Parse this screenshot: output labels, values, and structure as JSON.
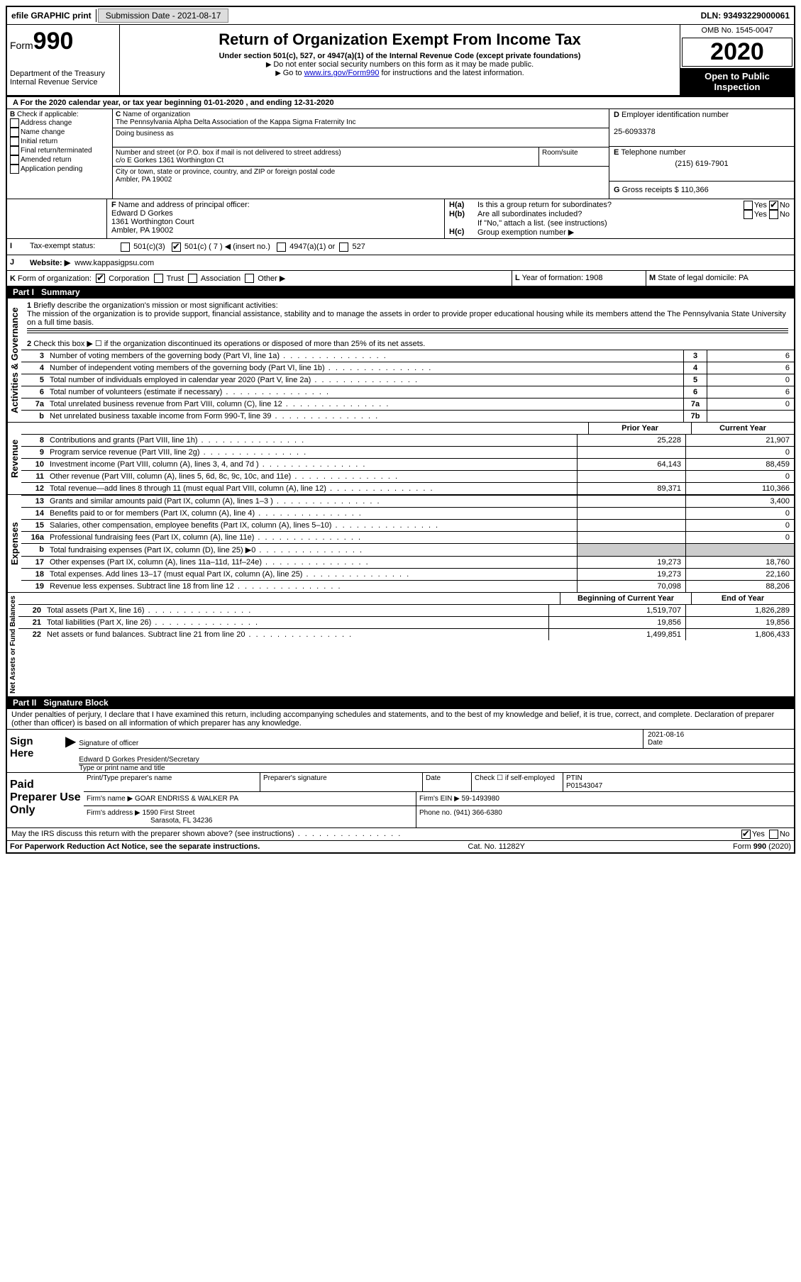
{
  "topbar": {
    "efile": "efile GRAPHIC print",
    "submission_label": "Submission Date - 2021-08-17",
    "dln_label": "DLN: 93493229000061"
  },
  "header": {
    "form_label": "Form",
    "form_number": "990",
    "dept": "Department of the Treasury\nInternal Revenue Service",
    "title": "Return of Organization Exempt From Income Tax",
    "subtitle": "Under section 501(c), 527, or 4947(a)(1) of the Internal Revenue Code (except private foundations)",
    "note1": "Do not enter social security numbers on this form as it may be made public.",
    "note2_pre": "Go to ",
    "note2_link": "www.irs.gov/Form990",
    "note2_post": " for instructions and the latest information.",
    "omb": "OMB No. 1545-0047",
    "year": "2020",
    "open": "Open to Public Inspection"
  },
  "periodA": "For the 2020 calendar year, or tax year beginning 01-01-2020    , and ending 12-31-2020",
  "boxB": {
    "label": "Check if applicable:",
    "opts": [
      "Address change",
      "Name change",
      "Initial return",
      "Final return/terminated",
      "Amended return",
      "Application pending"
    ]
  },
  "boxC": {
    "name_label": "Name of organization",
    "name": "The Pennsylvania Alpha Delta Association of the Kappa Sigma Fraternity Inc",
    "dba_label": "Doing business as",
    "addr_label": "Number and street (or P.O. box if mail is not delivered to street address)",
    "room_label": "Room/suite",
    "addr": "c/o E Gorkes 1361 Worthington Ct",
    "city_label": "City or town, state or province, country, and ZIP or foreign postal code",
    "city": "Ambler, PA  19002"
  },
  "boxD": {
    "label": "Employer identification number",
    "val": "25-6093378"
  },
  "boxE": {
    "label": "Telephone number",
    "val": "(215) 619-7901"
  },
  "boxG": {
    "label": "Gross receipts $ 110,366"
  },
  "boxF": {
    "label": "Name and address of principal officer:",
    "name": "Edward D Gorkes",
    "addr1": "1361 Worthington Court",
    "addr2": "Ambler, PA  19002"
  },
  "boxH": {
    "a": "Is this a group return for subordinates?",
    "b": "Are all subordinates included?",
    "bnote": "If \"No,\" attach a list. (see instructions)",
    "c": "Group exemption number ▶"
  },
  "taxExempt": {
    "label": "Tax-exempt status:",
    "o1": "501(c)(3)",
    "o2": "501(c) ( 7 ) ◀ (insert no.)",
    "o3": "4947(a)(1) or",
    "o4": "527"
  },
  "website": {
    "label": "Website: ▶",
    "val": "www.kappasigpsu.com"
  },
  "boxK": {
    "label": "Form of organization:",
    "opts": [
      "Corporation",
      "Trust",
      "Association",
      "Other ▶"
    ]
  },
  "boxL": {
    "label": "Year of formation: 1908"
  },
  "boxM": {
    "label": "State of legal domicile: PA"
  },
  "part1": {
    "title": "Part I",
    "heading": "Summary",
    "l1": "Briefly describe the organization's mission or most significant activities:",
    "mission": "The mission of the organization is to provide support, financial assistance, stability and to manage the assets in order to provide proper educational housing while its members attend the The Pennsylvania State University on a full time basis.",
    "l2": "Check this box ▶ ☐  if the organization discontinued its operations or disposed of more than 25% of its net assets.",
    "rows_gov": [
      {
        "n": "3",
        "t": "Number of voting members of the governing body (Part VI, line 1a)",
        "box": "3",
        "v": "6"
      },
      {
        "n": "4",
        "t": "Number of independent voting members of the governing body (Part VI, line 1b)",
        "box": "4",
        "v": "6"
      },
      {
        "n": "5",
        "t": "Total number of individuals employed in calendar year 2020 (Part V, line 2a)",
        "box": "5",
        "v": "0"
      },
      {
        "n": "6",
        "t": "Total number of volunteers (estimate if necessary)",
        "box": "6",
        "v": "6"
      },
      {
        "n": "7a",
        "t": "Total unrelated business revenue from Part VIII, column (C), line 12",
        "box": "7a",
        "v": "0"
      },
      {
        "n": "b",
        "t": "Net unrelated business taxable income from Form 990-T, line 39",
        "box": "7b",
        "v": ""
      }
    ],
    "col_prior": "Prior Year",
    "col_curr": "Current Year",
    "rows_rev": [
      {
        "n": "8",
        "t": "Contributions and grants (Part VIII, line 1h)",
        "p": "25,228",
        "c": "21,907"
      },
      {
        "n": "9",
        "t": "Program service revenue (Part VIII, line 2g)",
        "p": "",
        "c": "0"
      },
      {
        "n": "10",
        "t": "Investment income (Part VIII, column (A), lines 3, 4, and 7d )",
        "p": "64,143",
        "c": "88,459"
      },
      {
        "n": "11",
        "t": "Other revenue (Part VIII, column (A), lines 5, 6d, 8c, 9c, 10c, and 11e)",
        "p": "",
        "c": "0"
      },
      {
        "n": "12",
        "t": "Total revenue—add lines 8 through 11 (must equal Part VIII, column (A), line 12)",
        "p": "89,371",
        "c": "110,366"
      }
    ],
    "rows_exp": [
      {
        "n": "13",
        "t": "Grants and similar amounts paid (Part IX, column (A), lines 1–3 )",
        "p": "",
        "c": "3,400"
      },
      {
        "n": "14",
        "t": "Benefits paid to or for members (Part IX, column (A), line 4)",
        "p": "",
        "c": "0"
      },
      {
        "n": "15",
        "t": "Salaries, other compensation, employee benefits (Part IX, column (A), lines 5–10)",
        "p": "",
        "c": "0"
      },
      {
        "n": "16a",
        "t": "Professional fundraising fees (Part IX, column (A), line 11e)",
        "p": "",
        "c": "0"
      },
      {
        "n": "b",
        "t": "Total fundraising expenses (Part IX, column (D), line 25) ▶0",
        "p": "shade",
        "c": "shade"
      },
      {
        "n": "17",
        "t": "Other expenses (Part IX, column (A), lines 11a–11d, 11f–24e)",
        "p": "19,273",
        "c": "18,760"
      },
      {
        "n": "18",
        "t": "Total expenses. Add lines 13–17 (must equal Part IX, column (A), line 25)",
        "p": "19,273",
        "c": "22,160"
      },
      {
        "n": "19",
        "t": "Revenue less expenses. Subtract line 18 from line 12",
        "p": "70,098",
        "c": "88,206"
      }
    ],
    "col_begin": "Beginning of Current Year",
    "col_end": "End of Year",
    "rows_net": [
      {
        "n": "20",
        "t": "Total assets (Part X, line 16)",
        "p": "1,519,707",
        "c": "1,826,289"
      },
      {
        "n": "21",
        "t": "Total liabilities (Part X, line 26)",
        "p": "19,856",
        "c": "19,856"
      },
      {
        "n": "22",
        "t": "Net assets or fund balances. Subtract line 21 from line 20",
        "p": "1,499,851",
        "c": "1,806,433"
      }
    ]
  },
  "part2": {
    "title": "Part II",
    "heading": "Signature Block",
    "decl": "Under penalties of perjury, I declare that I have examined this return, including accompanying schedules and statements, and to the best of my knowledge and belief, it is true, correct, and complete. Declaration of preparer (other than officer) is based on all information of which preparer has any knowledge.",
    "sign_here": "Sign Here",
    "sig_officer": "Signature of officer",
    "sig_date": "2021-08-16",
    "date_label": "Date",
    "officer_name": "Edward D Gorkes  President/Secretary",
    "type_label": "Type or print name and title",
    "paid": "Paid Preparer Use Only",
    "prep_name_label": "Print/Type preparer's name",
    "prep_sig_label": "Preparer's signature",
    "check_self": "Check ☐ if self-employed",
    "ptin_label": "PTIN",
    "ptin": "P01543047",
    "firm_name_label": "Firm's name    ▶",
    "firm_name": "GOAR ENDRISS & WALKER PA",
    "firm_ein_label": "Firm's EIN ▶",
    "firm_ein": "59-1493980",
    "firm_addr_label": "Firm's address ▶",
    "firm_addr1": "1590 First Street",
    "firm_addr2": "Sarasota, FL  34236",
    "phone_label": "Phone no.",
    "phone": "(941) 366-6380",
    "discuss": "May the IRS discuss this return with the preparer shown above? (see instructions)"
  },
  "footer": {
    "left": "For Paperwork Reduction Act Notice, see the separate instructions.",
    "mid": "Cat. No. 11282Y",
    "right": "Form 990 (2020)"
  }
}
